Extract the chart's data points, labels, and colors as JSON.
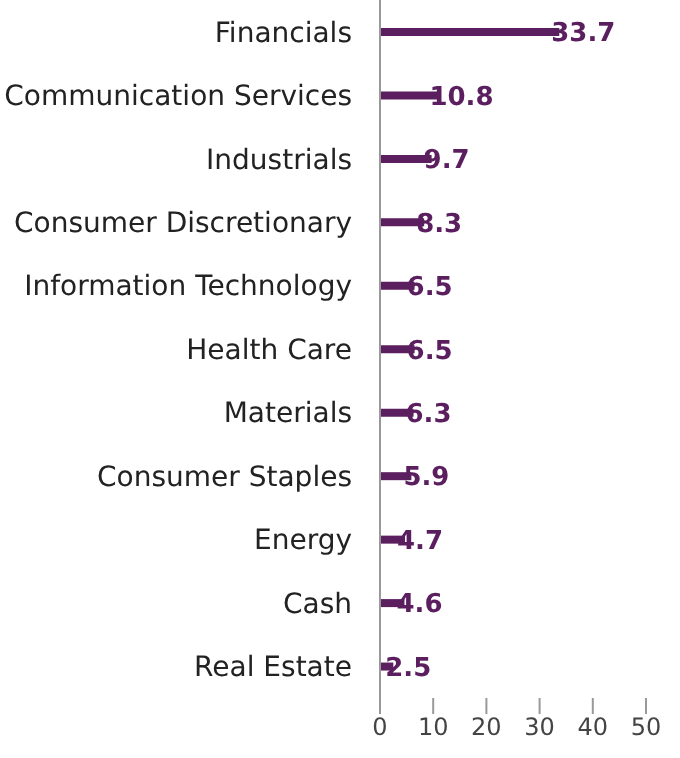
{
  "chart_data": {
    "type": "bar",
    "orientation": "horizontal",
    "categories": [
      "Financials",
      "Communication Services",
      "Industrials",
      "Consumer Discretionary",
      "Information Technology",
      "Health Care",
      "Materials",
      "Consumer Staples",
      "Energy",
      "Cash",
      "Real Estate"
    ],
    "values": [
      33.7,
      10.8,
      9.7,
      8.3,
      6.5,
      6.5,
      6.3,
      5.9,
      4.7,
      4.6,
      2.5
    ],
    "color": "#5b1f5f",
    "xlim": [
      0,
      50
    ],
    "xticks": [
      0,
      10,
      20,
      30,
      40,
      50
    ],
    "data_labels": true
  }
}
